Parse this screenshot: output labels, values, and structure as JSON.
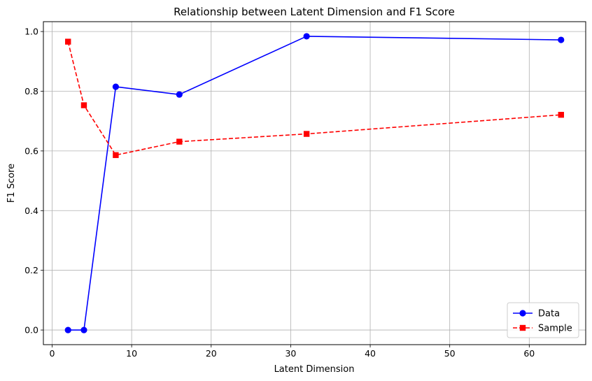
{
  "chart_data": {
    "type": "line",
    "title": "Relationship between Latent Dimension and F1 Score",
    "xlabel": "Latent Dimension",
    "ylabel": "F1 Score",
    "xlim": [
      -1.1,
      67.1
    ],
    "ylim": [
      -0.049,
      1.033
    ],
    "xticks": [
      0,
      10,
      20,
      30,
      40,
      50,
      60
    ],
    "yticks": [
      0.0,
      0.2,
      0.4,
      0.6,
      0.8,
      1.0
    ],
    "xtick_labels": [
      "0",
      "10",
      "20",
      "30",
      "40",
      "50",
      "60"
    ],
    "ytick_labels": [
      "0.0",
      "0.2",
      "0.4",
      "0.6",
      "0.8",
      "1.0"
    ],
    "grid": true,
    "legend_position": "lower-right",
    "x": [
      2,
      4,
      8,
      16,
      32,
      64
    ],
    "series": [
      {
        "name": "Data",
        "color": "#0000ff",
        "line_style": "solid",
        "marker": "circle",
        "values": [
          0.0,
          0.0,
          0.815,
          0.789,
          0.984,
          0.972
        ]
      },
      {
        "name": "Sample",
        "color": "#ff0000",
        "line_style": "dashed",
        "marker": "square",
        "values": [
          0.966,
          0.753,
          0.586,
          0.631,
          0.657,
          0.721
        ]
      }
    ]
  }
}
